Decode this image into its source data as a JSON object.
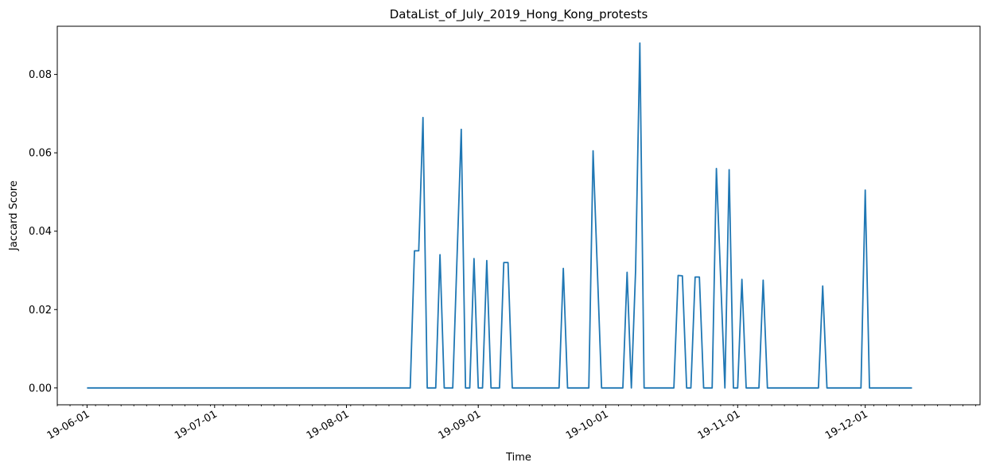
{
  "chart_data": {
    "type": "line",
    "title": "DataList_of_July_2019_Hong_Kong_protests",
    "xlabel": "Time",
    "ylabel": "Jaccard Score",
    "xlim": [
      "2019-05-25",
      "2019-12-28"
    ],
    "ylim": [
      -0.0043,
      0.0923
    ],
    "grid": false,
    "line_color": "#1f77b4",
    "x_ticks": [
      {
        "date": "2019-06-01",
        "label": "19-06-01"
      },
      {
        "date": "2019-07-01",
        "label": "19-07-01"
      },
      {
        "date": "2019-08-01",
        "label": "19-08-01"
      },
      {
        "date": "2019-09-01",
        "label": "19-09-01"
      },
      {
        "date": "2019-10-01",
        "label": "19-10-01"
      },
      {
        "date": "2019-11-01",
        "label": "19-11-01"
      },
      {
        "date": "2019-12-01",
        "label": "19-12-01"
      }
    ],
    "y_ticks": [
      {
        "value": 0.0,
        "label": "0.00"
      },
      {
        "value": 0.02,
        "label": "0.02"
      },
      {
        "value": 0.04,
        "label": "0.04"
      },
      {
        "value": 0.06,
        "label": "0.06"
      },
      {
        "value": 0.08,
        "label": "0.08"
      }
    ],
    "series": [
      {
        "points": [
          [
            "2019-06-01",
            0
          ],
          [
            "2019-08-16",
            0
          ],
          [
            "2019-08-17",
            0.035
          ],
          [
            "2019-08-18",
            0.035
          ],
          [
            "2019-08-19",
            0.069
          ],
          [
            "2019-08-20",
            0
          ],
          [
            "2019-08-22",
            0
          ],
          [
            "2019-08-23",
            0.034
          ],
          [
            "2019-08-24",
            0
          ],
          [
            "2019-08-26",
            0
          ],
          [
            "2019-08-28",
            0.066
          ],
          [
            "2019-08-29",
            0
          ],
          [
            "2019-08-30",
            0
          ],
          [
            "2019-08-31",
            0.033
          ],
          [
            "2019-09-01",
            0
          ],
          [
            "2019-09-02",
            0
          ],
          [
            "2019-09-03",
            0.0325
          ],
          [
            "2019-09-04",
            0
          ],
          [
            "2019-09-06",
            0
          ],
          [
            "2019-09-07",
            0.032
          ],
          [
            "2019-09-08",
            0.032
          ],
          [
            "2019-09-09",
            0
          ],
          [
            "2019-09-20",
            0
          ],
          [
            "2019-09-21",
            0.0305
          ],
          [
            "2019-09-22",
            0
          ],
          [
            "2019-09-27",
            0
          ],
          [
            "2019-09-28",
            0.0605
          ],
          [
            "2019-09-30",
            0
          ],
          [
            "2019-10-05",
            0
          ],
          [
            "2019-10-06",
            0.0295
          ],
          [
            "2019-10-07",
            0
          ],
          [
            "2019-10-08",
            0.03
          ],
          [
            "2019-10-09",
            0.088
          ],
          [
            "2019-10-10",
            0
          ],
          [
            "2019-10-17",
            0
          ],
          [
            "2019-10-18",
            0.0287
          ],
          [
            "2019-10-19",
            0.0286
          ],
          [
            "2019-10-20",
            0
          ],
          [
            "2019-10-21",
            0
          ],
          [
            "2019-10-22",
            0.0283
          ],
          [
            "2019-10-23",
            0.0283
          ],
          [
            "2019-10-24",
            0
          ],
          [
            "2019-10-26",
            0
          ],
          [
            "2019-10-27",
            0.056
          ],
          [
            "2019-10-29",
            0
          ],
          [
            "2019-10-30",
            0.0557
          ],
          [
            "2019-10-31",
            0
          ],
          [
            "2019-11-01",
            0
          ],
          [
            "2019-11-02",
            0.0277
          ],
          [
            "2019-11-03",
            0
          ],
          [
            "2019-11-06",
            0
          ],
          [
            "2019-11-07",
            0.0275
          ],
          [
            "2019-11-08",
            0
          ],
          [
            "2019-11-20",
            0
          ],
          [
            "2019-11-21",
            0.026
          ],
          [
            "2019-11-22",
            0
          ],
          [
            "2019-11-30",
            0
          ],
          [
            "2019-12-01",
            0.0505
          ],
          [
            "2019-12-02",
            0
          ],
          [
            "2019-12-12",
            0
          ]
        ]
      }
    ]
  }
}
